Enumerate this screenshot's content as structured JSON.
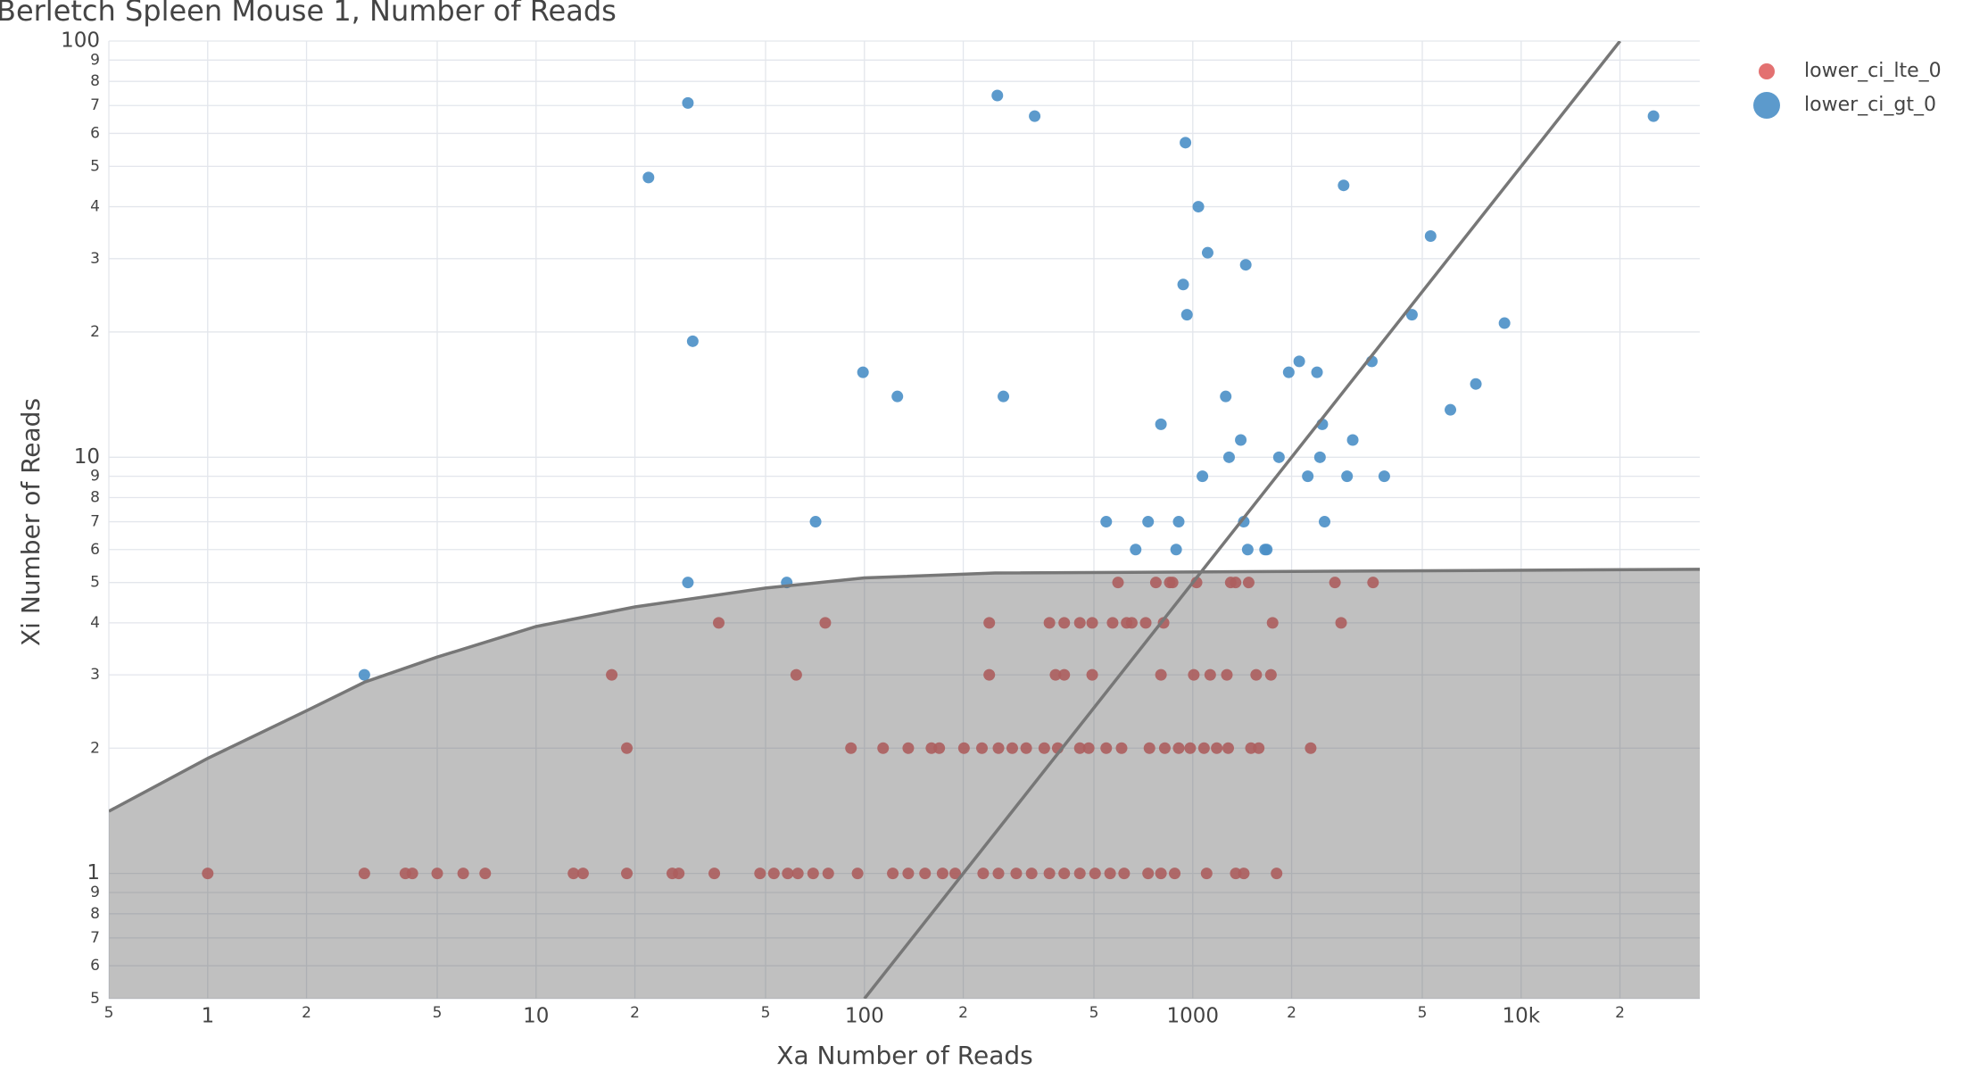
{
  "chart_data": {
    "type": "scatter",
    "title": "Berletch Spleen Mouse 1, Number of Reads",
    "x_label": "Xa Number of Reads",
    "y_label": "Xi Number of Reads",
    "log_x": true,
    "log_y": true,
    "grid": true,
    "legend": "top-right",
    "xlim": [
      0.5,
      35000
    ],
    "ylim": [
      0.5,
      100
    ],
    "xticks": [
      {
        "value": 0.5,
        "label": "5"
      },
      1,
      {
        "value": 2,
        "label": "2"
      },
      {
        "value": 5,
        "label": "5"
      },
      10,
      {
        "value": 20,
        "label": "2"
      },
      {
        "value": 50,
        "label": "5"
      },
      100,
      {
        "value": 200,
        "label": "2"
      },
      {
        "value": 500,
        "label": "5"
      },
      1000,
      {
        "value": 2000,
        "label": "2"
      },
      {
        "value": 5000,
        "label": "5"
      },
      {
        "value": 10000,
        "label": "10k"
      },
      {
        "value": 20000,
        "label": "2"
      }
    ],
    "yticks": [
      {
        "value": 0.5,
        "label": "5"
      },
      {
        "value": 0.6,
        "label": "6"
      },
      {
        "value": 0.7,
        "label": "7"
      },
      {
        "value": 0.8,
        "label": "8"
      },
      {
        "value": 0.9,
        "label": "9"
      },
      1,
      2,
      3,
      4,
      5,
      6,
      7,
      8,
      9,
      10,
      {
        "value": 20,
        "label": "2"
      },
      {
        "value": 30,
        "label": "3"
      },
      {
        "value": 40,
        "label": "4"
      },
      {
        "value": 50,
        "label": "5"
      },
      {
        "value": 60,
        "label": "6"
      },
      {
        "value": 70,
        "label": "7"
      },
      {
        "value": 80,
        "label": "8"
      },
      {
        "value": 90,
        "label": "9"
      },
      100
    ],
    "series": [
      {
        "name": "lower_ci_lte_0",
        "color": "#e06262",
        "x": [
          592,
          772,
          851,
          868,
          1027,
          1305,
          1350,
          1480,
          2710,
          3540,
          36,
          76,
          240,
          366,
          406,
          453,
          494,
          570,
          629,
          652,
          719,
          815,
          1750,
          2830,
          17,
          62,
          240,
          382,
          406,
          494,
          800,
          1007,
          1130,
          1270,
          1560,
          1730,
          18.9,
          91,
          114,
          136,
          160,
          169,
          201,
          228,
          256,
          282,
          311,
          353,
          388,
          453,
          482,
          545,
          607,
          738,
          822,
          906,
          982,
          1082,
          1183,
          1282,
          1504,
          1588,
          2286,
          1,
          3,
          4,
          4.2,
          5,
          6,
          7,
          13,
          13.9,
          18.9,
          26,
          27.2,
          34.9,
          48.1,
          53,
          58.4,
          62.7,
          69.8,
          77.6,
          95.3,
          122,
          136,
          153,
          173,
          189,
          230,
          256,
          290,
          323,
          366,
          406,
          453,
          504,
          560,
          618,
          731,
          800,
          881,
          1102,
          1352,
          1430,
          1800
        ],
        "y": [
          5,
          5,
          5,
          5,
          5,
          5,
          5,
          5,
          5,
          5,
          4,
          4,
          4,
          4,
          4,
          4,
          4,
          4,
          4,
          4,
          4,
          4,
          4,
          4,
          3,
          3,
          3,
          3,
          3,
          3,
          3,
          3,
          3,
          3,
          3,
          3,
          2,
          2,
          2,
          2,
          2,
          2,
          2,
          2,
          2,
          2,
          2,
          2,
          2,
          2,
          2,
          2,
          2,
          2,
          2,
          2,
          2,
          2,
          2,
          2,
          2,
          2,
          2,
          1,
          1,
          1,
          1,
          1,
          1,
          1,
          1,
          1,
          1,
          1,
          1,
          1,
          1,
          1,
          1,
          1,
          1,
          1,
          1,
          1,
          1,
          1,
          1,
          1,
          1,
          1,
          1,
          1,
          1,
          1,
          1,
          1,
          1,
          1,
          1,
          1,
          1,
          1,
          1,
          1,
          1
        ]
      },
      {
        "name": "lower_ci_gt_0",
        "color": "#4a8fc7",
        "x": [
          29,
          22,
          30,
          254,
          330,
          950,
          1040,
          1110,
          1450,
          935,
          960,
          2880,
          5300,
          4650,
          8900,
          25300,
          99,
          126,
          265,
          71,
          29,
          58,
          3,
          2110,
          1960,
          2390,
          3510,
          1260,
          6090,
          7280,
          800,
          2480,
          1400,
          3070,
          1290,
          1830,
          2440,
          1070,
          2240,
          2950,
          3830,
          545,
          731,
          906,
          1430,
          2520,
          670,
          890,
          1470,
          1660,
          1680
        ],
        "y": [
          71,
          47,
          19,
          74,
          66,
          57,
          40,
          31,
          29,
          26,
          22,
          45,
          34,
          22,
          21,
          66,
          16,
          14,
          14,
          7,
          5,
          5,
          3,
          17,
          16,
          16,
          17,
          14,
          13,
          15,
          12,
          12,
          11,
          11,
          10,
          10,
          10,
          9,
          9,
          9,
          9,
          7,
          7,
          7,
          7,
          7,
          6,
          6,
          6,
          6,
          6
        ]
      }
    ],
    "lines": [
      {
        "color": "#777777",
        "fill": true,
        "x": [
          0.5,
          1,
          2,
          3,
          5,
          10,
          20,
          50,
          100,
          250,
          35000
        ],
        "y": [
          1.41,
          1.89,
          2.46,
          2.88,
          3.31,
          3.92,
          4.37,
          4.85,
          5.13,
          5.27,
          5.38
        ]
      },
      {
        "color": "#777777",
        "fill": false,
        "x": [
          100,
          20000
        ],
        "y": [
          0.5,
          100
        ]
      }
    ]
  }
}
